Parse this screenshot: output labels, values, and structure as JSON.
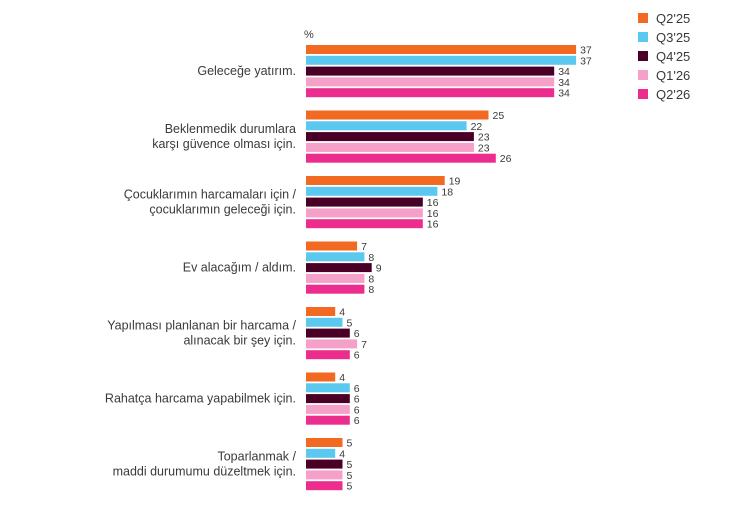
{
  "chart_data": {
    "type": "bar",
    "orientation": "horizontal",
    "unit": "%",
    "categories": [
      [
        "Geleceğe yatırım."
      ],
      [
        "Beklenmedik durumlara",
        "karşı güvence olması için."
      ],
      [
        "Çocuklarımın harcamaları için /",
        "çocuklarımın geleceği için."
      ],
      [
        "Ev alacağım / aldım."
      ],
      [
        "Yapılması planlanan bir harcama /",
        "alınacak bir şey için."
      ],
      [
        "Rahatça harcama yapabilmek için."
      ],
      [
        "Toparlanmak /",
        "maddi durumumu düzeltmek için."
      ]
    ],
    "series": [
      {
        "name": "Q2'25",
        "color": "#f26a22",
        "values": [
          37,
          25,
          19,
          7,
          4,
          4,
          5
        ]
      },
      {
        "name": "Q3'25",
        "color": "#5bc8f0",
        "values": [
          37,
          22,
          18,
          8,
          5,
          6,
          4
        ]
      },
      {
        "name": "Q4'25",
        "color": "#4a0026",
        "values": [
          34,
          23,
          16,
          9,
          6,
          6,
          5
        ]
      },
      {
        "name": "Q1'26",
        "color": "#f5a0c8",
        "values": [
          34,
          23,
          16,
          8,
          7,
          6,
          5
        ]
      },
      {
        "name": "Q2'26",
        "color": "#ec2d8d",
        "values": [
          34,
          26,
          16,
          8,
          6,
          6,
          5
        ]
      }
    ],
    "legend_position": "top-right",
    "grid": false
  }
}
